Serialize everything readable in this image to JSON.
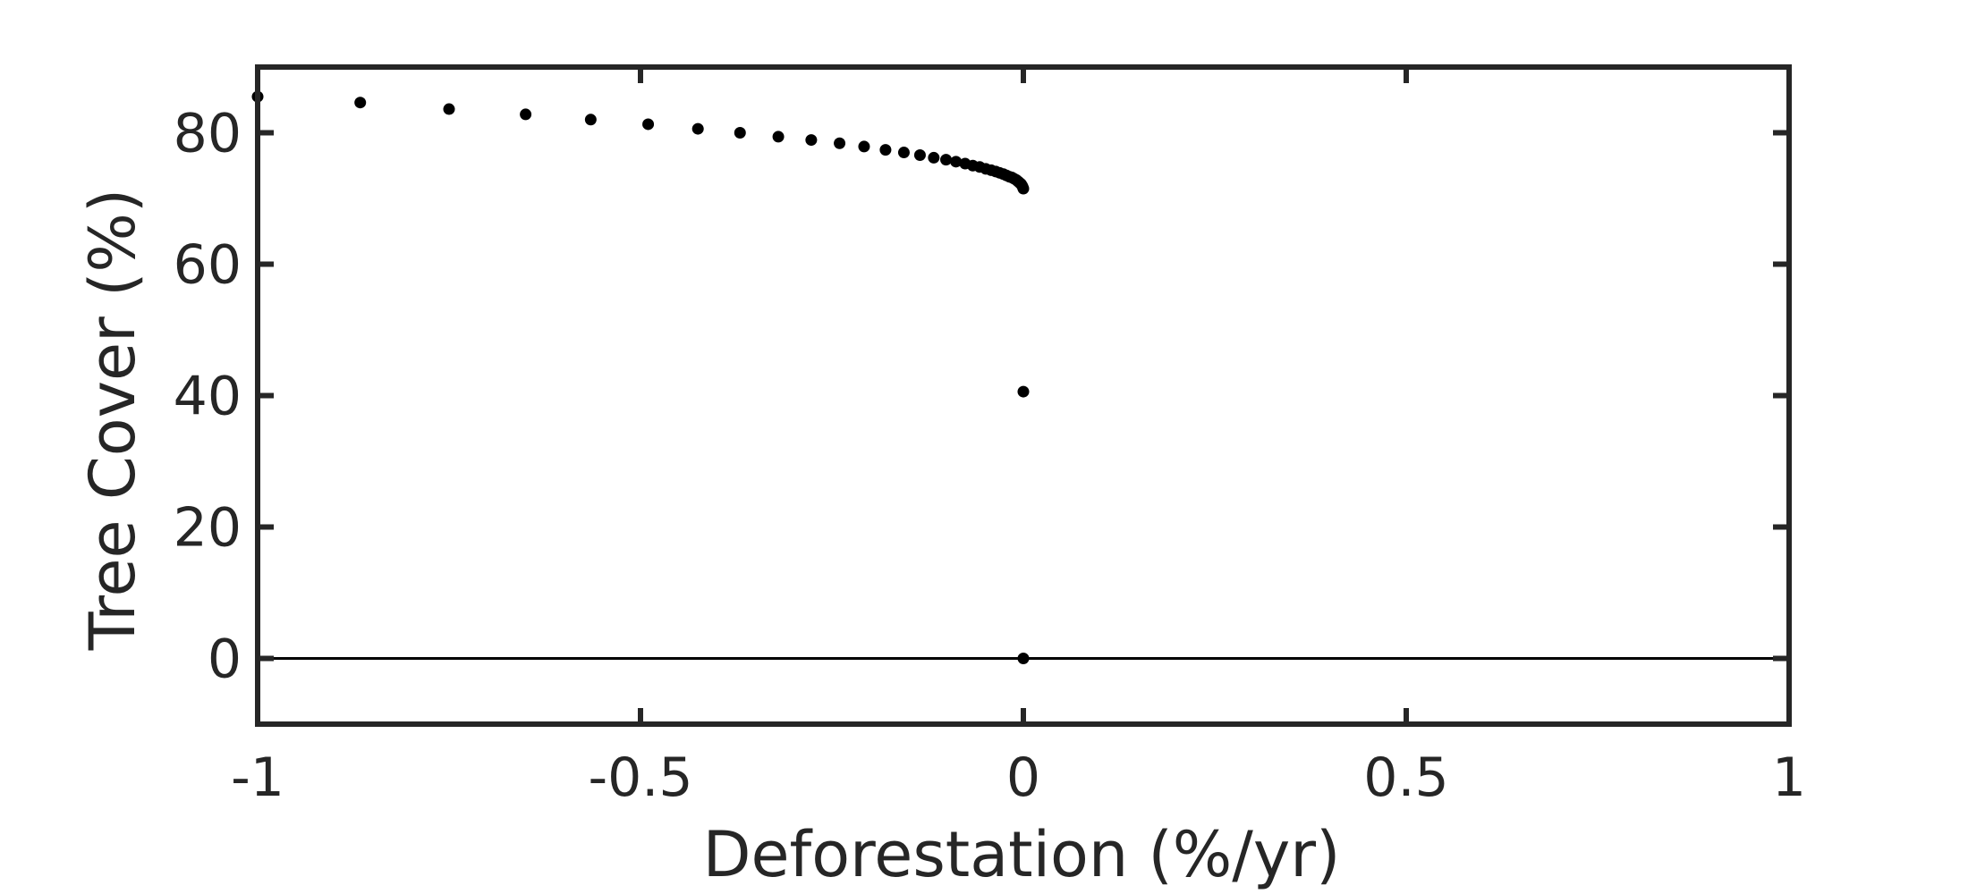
{
  "chart_data": {
    "type": "scatter",
    "xlabel": "Deforestation (%/yr)",
    "ylabel": "Tree Cover (%)",
    "xlim": [
      -1,
      1
    ],
    "ylim": [
      -10,
      90
    ],
    "xticks": [
      -1,
      -0.5,
      0,
      0.5,
      1
    ],
    "xtick_labels": [
      "-1",
      "-0.5",
      "0",
      "0.5",
      "1"
    ],
    "yticks": [
      0,
      20,
      40,
      60,
      80
    ],
    "ytick_labels": [
      "0",
      "20",
      "40",
      "60",
      "80"
    ],
    "grid": false,
    "reference_lines": [
      {
        "y": 0
      }
    ],
    "marker_color": "#000000",
    "axis_color": "#262626",
    "points": [
      {
        "x": -1.0,
        "y": 85.5
      },
      {
        "x": -0.866,
        "y": 84.6
      },
      {
        "x": -0.75,
        "y": 83.6
      },
      {
        "x": -0.65,
        "y": 82.8
      },
      {
        "x": -0.565,
        "y": 82.0
      },
      {
        "x": -0.49,
        "y": 81.3
      },
      {
        "x": -0.425,
        "y": 80.6
      },
      {
        "x": -0.37,
        "y": 80.0
      },
      {
        "x": -0.32,
        "y": 79.4
      },
      {
        "x": -0.277,
        "y": 78.9
      },
      {
        "x": -0.24,
        "y": 78.4
      },
      {
        "x": -0.208,
        "y": 77.9
      },
      {
        "x": -0.18,
        "y": 77.4
      },
      {
        "x": -0.156,
        "y": 77.0
      },
      {
        "x": -0.135,
        "y": 76.6
      },
      {
        "x": -0.117,
        "y": 76.2
      },
      {
        "x": -0.101,
        "y": 75.9
      },
      {
        "x": -0.088,
        "y": 75.6
      },
      {
        "x": -0.076,
        "y": 75.3
      },
      {
        "x": -0.066,
        "y": 75.0
      },
      {
        "x": -0.057,
        "y": 74.8
      },
      {
        "x": -0.049,
        "y": 74.5
      },
      {
        "x": -0.042,
        "y": 74.3
      },
      {
        "x": -0.036,
        "y": 74.1
      },
      {
        "x": -0.031,
        "y": 73.9
      },
      {
        "x": -0.026,
        "y": 73.7
      },
      {
        "x": -0.022,
        "y": 73.5
      },
      {
        "x": -0.018,
        "y": 73.3
      },
      {
        "x": -0.015,
        "y": 73.2
      },
      {
        "x": -0.012,
        "y": 73.0
      },
      {
        "x": -0.009,
        "y": 72.8
      },
      {
        "x": -0.007,
        "y": 72.6
      },
      {
        "x": -0.005,
        "y": 72.4
      },
      {
        "x": -0.003,
        "y": 72.2
      },
      {
        "x": -0.002,
        "y": 72.0
      },
      {
        "x": -0.001,
        "y": 71.8
      },
      {
        "x": 0.0,
        "y": 71.5
      },
      {
        "x": 0.0,
        "y": 40.6
      },
      {
        "x": 0.0,
        "y": 0.0
      }
    ]
  }
}
